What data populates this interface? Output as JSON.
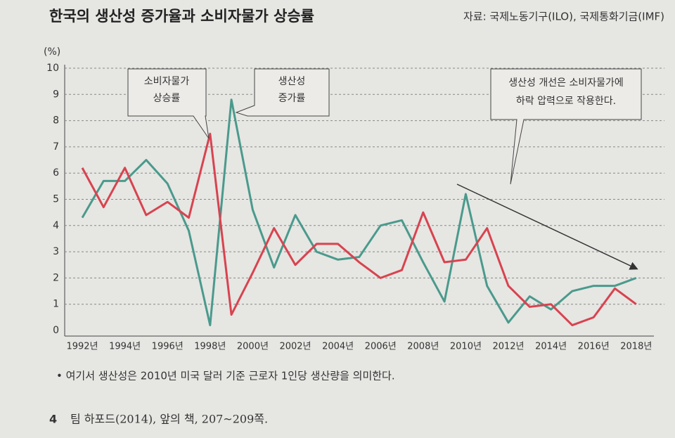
{
  "chart_data": {
    "type": "line",
    "title": "한국의 생산성 증가율과 소비자물가 상승률",
    "source": "자료: 국제노동기구(ILO), 국제통화기금(IMF)",
    "y_unit": "(%)",
    "categories": [
      "1992년",
      null,
      "1994년",
      null,
      "1996년",
      null,
      "1998년",
      null,
      "2000년",
      null,
      "2002년",
      null,
      "2004년",
      null,
      "2006년",
      null,
      "2008년",
      null,
      "2010년",
      null,
      "2012년",
      null,
      "2014년",
      null,
      "2016년",
      null,
      "2018년"
    ],
    "series": [
      {
        "color": "#4a9a8c",
        "values": [
          4.3,
          5.7,
          5.7,
          6.5,
          5.6,
          3.8,
          0.2,
          8.8,
          4.6,
          2.4,
          4.4,
          3.0,
          2.7,
          2.8,
          4.0,
          4.2,
          2.6,
          1.1,
          5.2,
          1.7,
          0.3,
          1.3,
          0.8,
          1.5,
          1.7,
          1.7,
          2.0
        ]
      },
      {
        "color": "#d8434f",
        "values": [
          6.2,
          4.7,
          6.2,
          4.4,
          4.9,
          4.3,
          7.5,
          0.6,
          2.2,
          3.9,
          2.5,
          3.3,
          3.3,
          2.6,
          2.0,
          2.3,
          4.5,
          2.6,
          2.7,
          3.9,
          1.7,
          0.9,
          1.0,
          0.2,
          0.5,
          1.6,
          1.0
        ]
      }
    ],
    "ylim": [
      0,
      10
    ],
    "yticks": [
      0,
      1,
      2,
      3,
      4,
      5,
      6,
      7,
      8,
      9,
      10
    ],
    "grid": true,
    "annotations": [
      {
        "lines": [
          "소비자물가",
          "상승률"
        ]
      },
      {
        "lines": [
          "생산성",
          "증가률"
        ]
      },
      {
        "lines": [
          "생산성 개선은 소비자물가에",
          "하락 압력으로 작용한다."
        ]
      }
    ]
  },
  "footnote": "• 여기서 생산성은 2010년 미국 달러 기준 근로자 1인당 생산량을 의미한다.",
  "reference": {
    "number": "4",
    "text": "팀 하포드(2014), 앞의 책, 207~209쪽."
  }
}
